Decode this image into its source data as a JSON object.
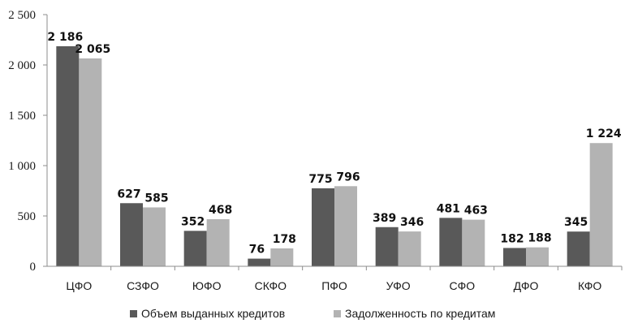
{
  "chart_data": {
    "type": "bar",
    "title": "",
    "xlabel": "",
    "ylabel": "",
    "ylim": [
      0,
      2500
    ],
    "yticks": [
      0,
      500,
      1000,
      1500,
      2000,
      2500
    ],
    "ytick_labels": [
      "0",
      "500",
      "1 000",
      "1 500",
      "2 000",
      "2 500"
    ],
    "grid": false,
    "legend_position": "bottom",
    "categories": [
      "ЦФО",
      "СЗФО",
      "ЮФО",
      "СКФО",
      "ПФО",
      "УФО",
      "СФО",
      "ДФО",
      "КФО"
    ],
    "series": [
      {
        "name": "Объем выданных кредитов",
        "color": "#595959",
        "values": [
          2186,
          627,
          352,
          76,
          775,
          389,
          481,
          182,
          345
        ],
        "labels": [
          "2 186",
          "627",
          "352",
          "76",
          "775",
          "389",
          "481",
          "182",
          "345"
        ]
      },
      {
        "name": "Задолженность по кредитам",
        "color": "#b3b3b3",
        "values": [
          2065,
          585,
          468,
          178,
          796,
          346,
          463,
          188,
          1224
        ],
        "labels": [
          "2 065",
          "585",
          "468",
          "178",
          "796",
          "346",
          "463",
          "188",
          "1 224"
        ]
      }
    ]
  }
}
